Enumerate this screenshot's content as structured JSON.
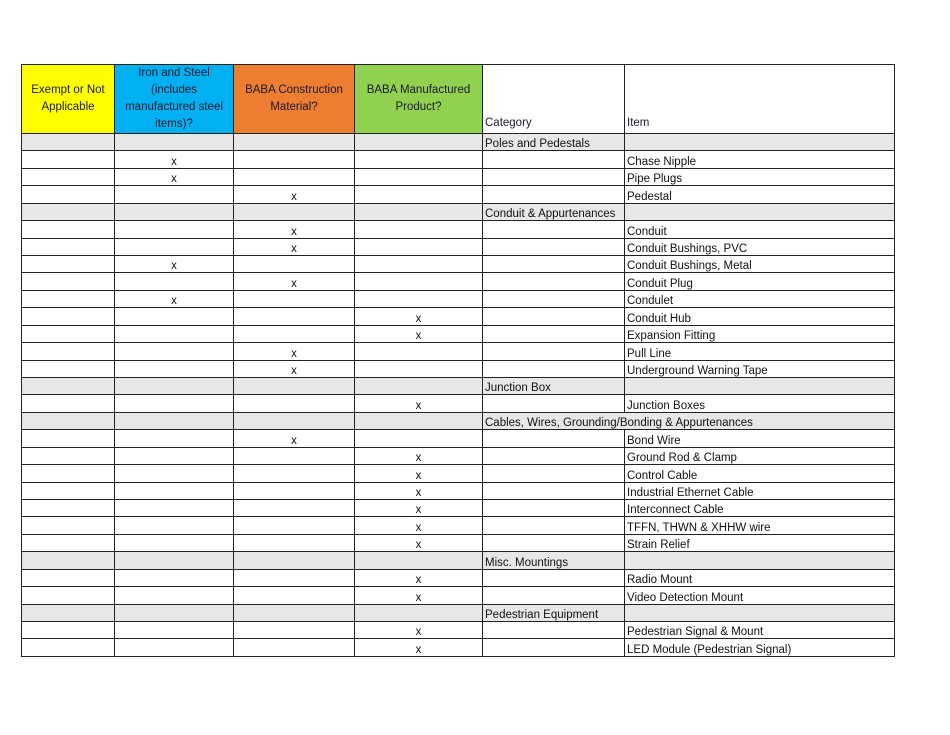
{
  "table": {
    "header": [
      "Exempt or Not Applicable",
      "Iron and Steel (includes manufactured steel items)?",
      "BABA Construction Material?",
      "BABA Manufactured Product?",
      "Category",
      "Item"
    ],
    "rows": [
      [
        null,
        null,
        null,
        null,
        "Poles and Pedestals",
        null
      ],
      [
        null,
        "x",
        null,
        null,
        null,
        "Chase Nipple"
      ],
      [
        null,
        "x",
        null,
        null,
        null,
        "Pipe Plugs"
      ],
      [
        null,
        null,
        "x",
        null,
        null,
        "Pedestal"
      ],
      [
        null,
        null,
        null,
        null,
        "Conduit & Appurtenances",
        null
      ],
      [
        null,
        null,
        "x",
        null,
        null,
        "Conduit"
      ],
      [
        null,
        null,
        "x",
        null,
        null,
        "Conduit Bushings, PVC"
      ],
      [
        null,
        "x",
        null,
        null,
        null,
        "Conduit Bushings, Metal"
      ],
      [
        null,
        null,
        "x",
        null,
        null,
        "Conduit Plug"
      ],
      [
        null,
        "x",
        null,
        null,
        null,
        "Condulet"
      ],
      [
        null,
        null,
        null,
        "x",
        null,
        "Conduit Hub"
      ],
      [
        null,
        null,
        null,
        "x",
        null,
        "Expansion Fitting"
      ],
      [
        null,
        null,
        "x",
        null,
        null,
        "Pull Line"
      ],
      [
        null,
        null,
        "x",
        null,
        null,
        "Underground Warning Tape"
      ],
      [
        null,
        null,
        null,
        null,
        "Junction Box",
        null
      ],
      [
        null,
        null,
        null,
        "x",
        null,
        "Junction Boxes"
      ],
      [
        null,
        null,
        null,
        null,
        "Cables, Wires, Grounding/Bonding & Appurtenances",
        null
      ],
      [
        null,
        null,
        "x",
        null,
        null,
        "Bond Wire"
      ],
      [
        null,
        null,
        null,
        "x",
        null,
        "Ground Rod & Clamp"
      ],
      [
        null,
        null,
        null,
        "x",
        null,
        "Control Cable"
      ],
      [
        null,
        null,
        null,
        "x",
        null,
        "Industrial Ethernet Cable"
      ],
      [
        null,
        null,
        null,
        "x",
        null,
        "Interconnect Cable"
      ],
      [
        null,
        null,
        null,
        "x",
        null,
        "TFFN, THWN & XHHW wire"
      ],
      [
        null,
        null,
        null,
        "x",
        null,
        "Strain Relief"
      ],
      [
        null,
        null,
        null,
        null,
        "Misc. Mountings",
        null
      ],
      [
        null,
        null,
        null,
        "x",
        null,
        "Radio Mount"
      ],
      [
        null,
        null,
        null,
        "x",
        null,
        "Video Detection Mount"
      ],
      [
        null,
        null,
        null,
        null,
        "Pedestrian Equipment",
        null
      ],
      [
        null,
        null,
        null,
        "x",
        null,
        "Pedestrian Signal & Mount"
      ],
      [
        null,
        null,
        null,
        "x",
        null,
        "LED Module (Pedestrian Signal)"
      ]
    ]
  }
}
